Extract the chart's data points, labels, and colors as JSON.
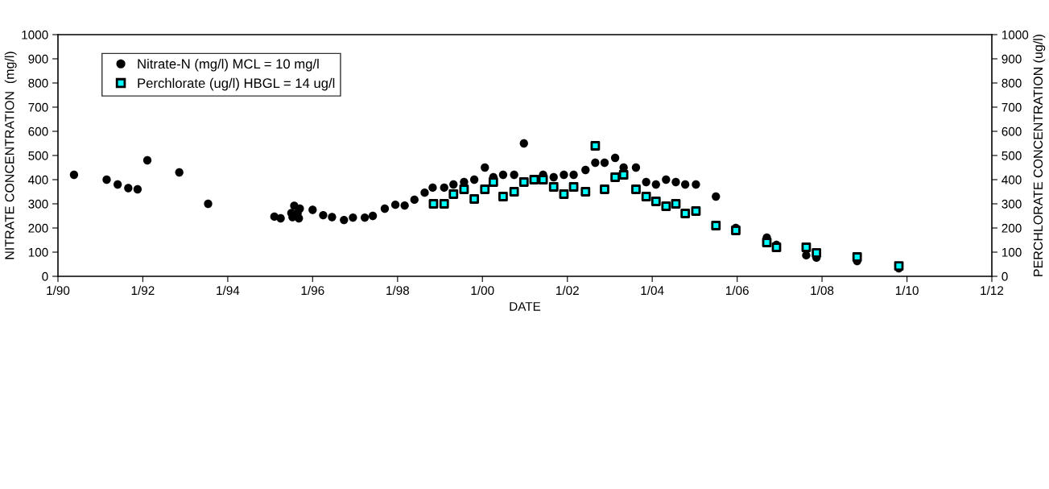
{
  "chart_data": {
    "type": "scatter",
    "xlabel": "DATE",
    "ylabel": "NITRATE CONCENTRATION  (mg/l)",
    "y2label": "PERCHLORATE CONCENTRATION (ug/l)",
    "series": [
      {
        "name": "Nitrate-N (mg/l) MCL = 10 mg/l",
        "color": "#000000",
        "marker": "circle",
        "axis": "y",
        "x": [
          "1990-05-19",
          "1991-02-24",
          "1991-05-30",
          "1991-08-29",
          "1991-11-17",
          "1992-02-09",
          "1992-11-10",
          "1993-07-16",
          "1995-02-06",
          "1995-04-01",
          "1995-07-02",
          "1995-07-12",
          "1995-07-27",
          "1995-08-25",
          "1995-09-13",
          "1995-09-05",
          "1996-01-01",
          "1996-04-01",
          "1996-06-16",
          "1996-09-27",
          "1996-12-13",
          "1997-03-25",
          "1997-06-02",
          "1997-09-13",
          "1997-12-13",
          "1998-03-03",
          "1998-05-26",
          "1998-08-22",
          "1998-10-30",
          "1999-02-06",
          "1999-04-27",
          "1999-07-27",
          "1999-10-23",
          "2000-01-22",
          "2000-04-04",
          "2000-06-27",
          "2000-09-30",
          "2000-12-23",
          "2001-06-06",
          "2001-09-05",
          "2001-12-02",
          "2002-02-24",
          "2002-06-06",
          "2002-08-29",
          "2002-11-17",
          "2003-02-16",
          "2003-04-30",
          "2003-08-14",
          "2003-11-10",
          "2004-02-02",
          "2004-04-29",
          "2004-07-22",
          "2004-10-11",
          "2005-01-11",
          "2005-07-02",
          "2005-12-20",
          "2006-09-13",
          "2006-12-05",
          "2007-08-18",
          "2007-11-14",
          "2008-10-29",
          "2009-10-23"
        ],
        "values": [
          420,
          400,
          380,
          365,
          360,
          480,
          430,
          300,
          247,
          240,
          262,
          245,
          292,
          262,
          280,
          240,
          275,
          253,
          245,
          233,
          243,
          243,
          250,
          280,
          296,
          293,
          317,
          346,
          367,
          367,
          380,
          390,
          400,
          450,
          410,
          420,
          420,
          550,
          420,
          410,
          420,
          420,
          440,
          470,
          470,
          490,
          450,
          450,
          390,
          380,
          400,
          390,
          380,
          380,
          330,
          200,
          160,
          130,
          87,
          77,
          63,
          33
        ]
      },
      {
        "name": "Perchlorate (ug/l) HBGL = 14 ug/l",
        "color": "#00ffff",
        "marker": "square",
        "axis": "y2",
        "x": [
          "1998-11-06",
          "1999-02-06",
          "1999-04-27",
          "1999-07-27",
          "1999-10-23",
          "2000-01-22",
          "2000-04-04",
          "2000-06-27",
          "2000-09-30",
          "2000-12-23",
          "2001-03-21",
          "2001-06-06",
          "2001-09-05",
          "2001-12-02",
          "2002-02-24",
          "2002-06-06",
          "2002-08-29",
          "2002-11-17",
          "2003-02-16",
          "2003-04-30",
          "2003-08-14",
          "2003-11-10",
          "2004-02-02",
          "2004-04-29",
          "2004-07-22",
          "2004-10-11",
          "2005-01-11",
          "2005-07-02",
          "2005-12-20",
          "2006-09-13",
          "2006-12-05",
          "2007-08-18",
          "2007-11-14",
          "2008-10-29",
          "2009-10-23"
        ],
        "values": [
          300,
          300,
          340,
          360,
          320,
          360,
          390,
          330,
          350,
          390,
          400,
          400,
          370,
          340,
          370,
          350,
          540,
          360,
          410,
          420,
          360,
          330,
          310,
          290,
          300,
          260,
          270,
          210,
          190,
          140,
          120,
          120,
          97,
          80,
          43
        ]
      }
    ],
    "xlim": [
      "1990-01-01",
      "2012-01-01"
    ],
    "xticks": [
      {
        "value": "1990-01-01",
        "label": "1/90"
      },
      {
        "value": "1992-01-01",
        "label": "1/92"
      },
      {
        "value": "1994-01-01",
        "label": "1/94"
      },
      {
        "value": "1996-01-01",
        "label": "1/96"
      },
      {
        "value": "1998-01-01",
        "label": "1/98"
      },
      {
        "value": "2000-01-01",
        "label": "1/00"
      },
      {
        "value": "2002-01-01",
        "label": "1/02"
      },
      {
        "value": "2004-01-01",
        "label": "1/04"
      },
      {
        "value": "2006-01-01",
        "label": "1/06"
      },
      {
        "value": "2008-01-01",
        "label": "1/08"
      },
      {
        "value": "2010-01-01",
        "label": "1/10"
      },
      {
        "value": "2012-01-01",
        "label": "1/12"
      }
    ],
    "ylim": [
      0,
      1000
    ],
    "yticks": [
      0,
      100,
      200,
      300,
      400,
      500,
      600,
      700,
      800,
      900,
      1000
    ],
    "y2lim": [
      0,
      1000
    ],
    "y2ticks": [
      0,
      100,
      200,
      300,
      400,
      500,
      600,
      700,
      800,
      900,
      1000
    ],
    "grid": false,
    "legend": "top left"
  }
}
